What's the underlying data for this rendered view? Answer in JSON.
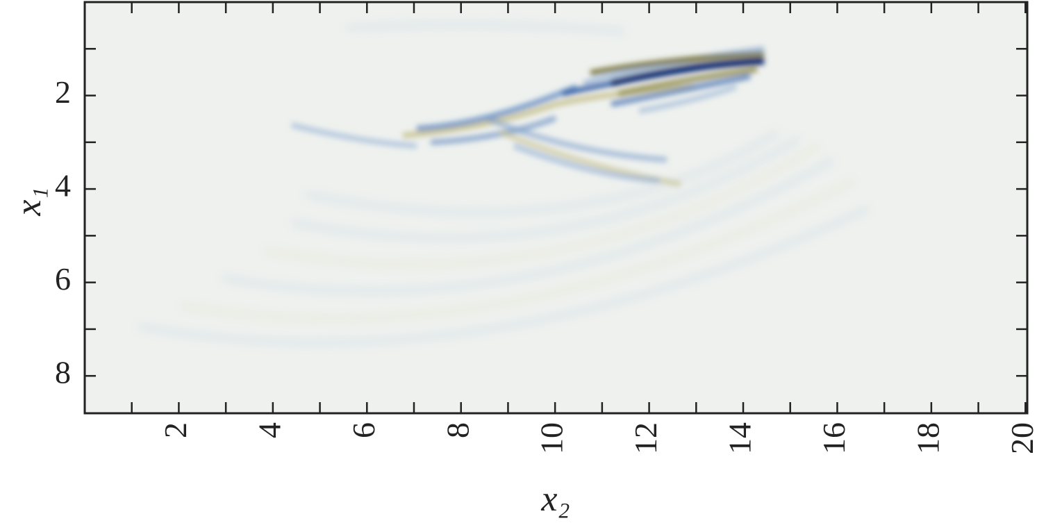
{
  "chart_data": {
    "type": "heatmap",
    "xlabel": "x₂",
    "ylabel": "x₁",
    "xlim": [
      0,
      20.04
    ],
    "ylim": [
      0,
      8.8
    ],
    "y_inverted": true,
    "xticks": [
      2,
      4,
      6,
      8,
      10,
      12,
      14,
      16,
      18,
      20
    ],
    "xminor": [
      1,
      3,
      5,
      7,
      9,
      11,
      13,
      15,
      17,
      19
    ],
    "yticks": [
      2,
      4,
      6,
      8
    ],
    "yminor": [
      1,
      3,
      5,
      7
    ]
  }
}
